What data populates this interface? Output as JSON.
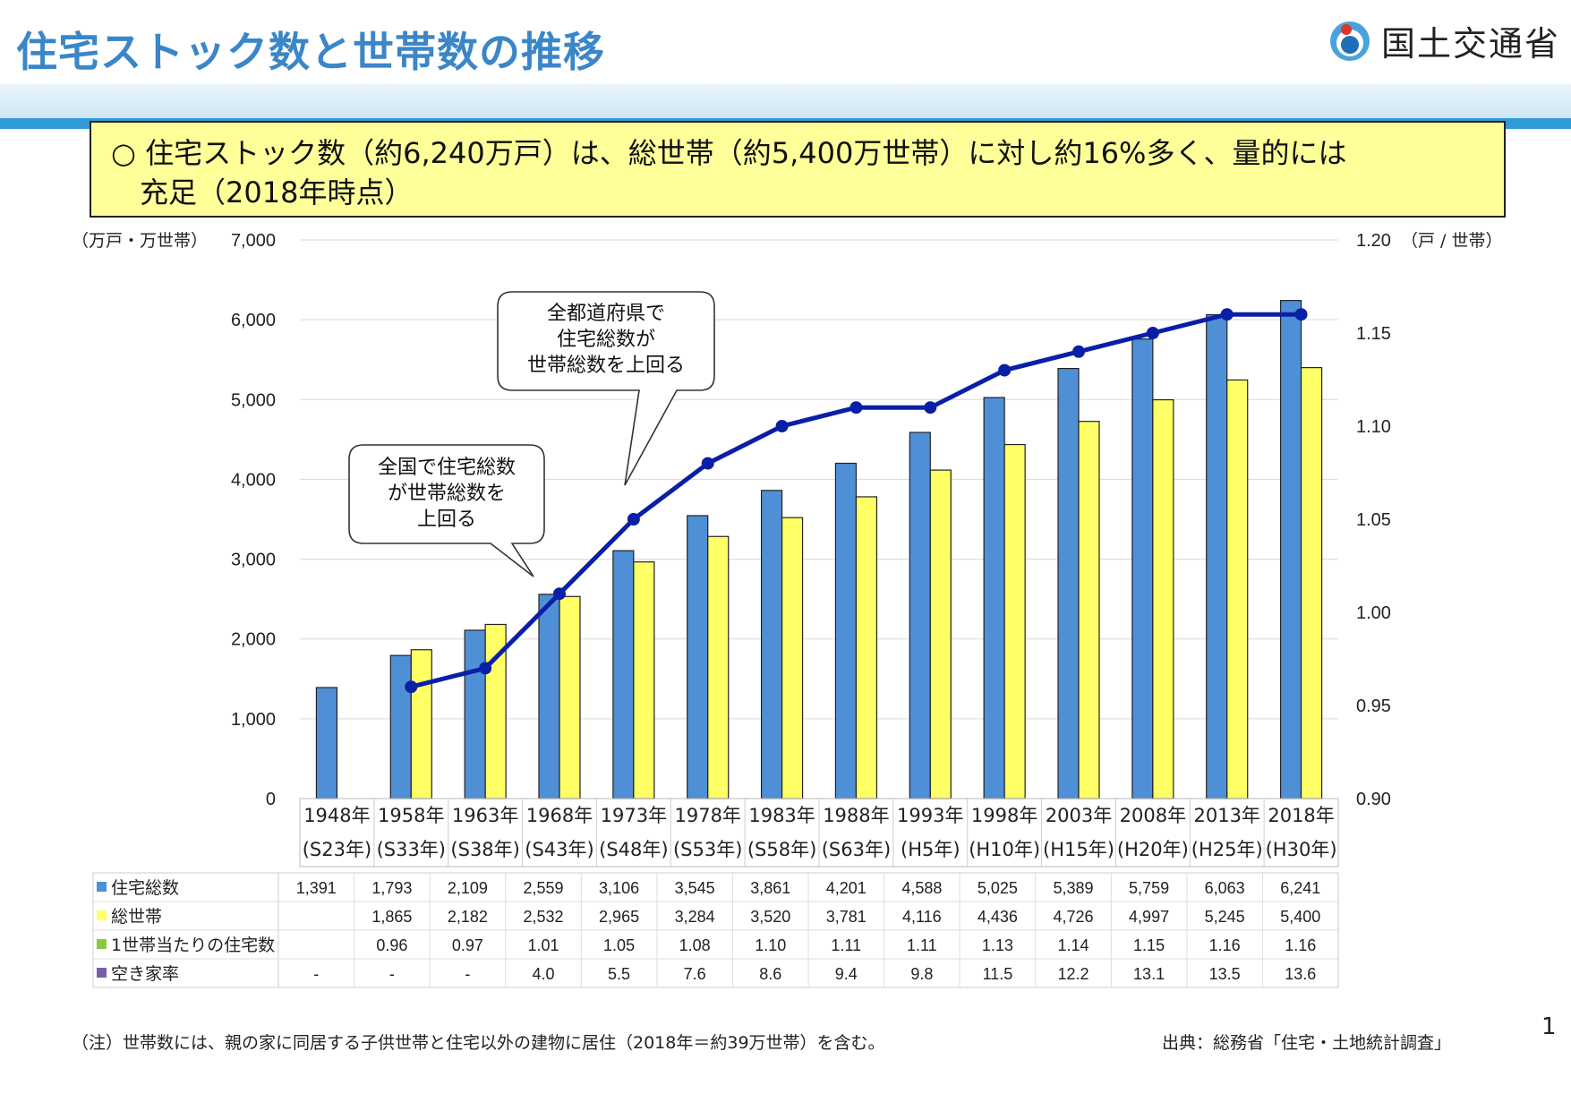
{
  "title": "住宅ストック数と世帯数の推移",
  "logo": {
    "name": "国土交通省",
    "icon": "mlit-logo-icon"
  },
  "summary": "○ 住宅ストック数（約6,240万戸）は、総世帯（約5,400万世帯）に対し約16%多く、量的には\n　充足（2018年時点）",
  "left_unit": "（万戸・万世帯）",
  "right_unit": "（戸 / 世帯）",
  "callouts": {
    "prefecture": "全都道府県で\n住宅総数が\n世帯総数を上回る",
    "national": "全国で住宅総数\nが世帯総数を\n上回る"
  },
  "note": "（注）世帯数には、親の家に同居する子供世帯と住宅以外の建物に居住（2018年＝約39万世帯）を含む。",
  "source": "出典：総務省「住宅・土地統計調査」",
  "page_number": "1",
  "colors": {
    "bar_houses": "#4f8fd6",
    "bar_households": "#ffff66",
    "line": "#0a1fa8",
    "title": "#3a86c8"
  },
  "chart_data": {
    "type": "bar",
    "categories": [
      "1948年",
      "1958年",
      "1963年",
      "1968年",
      "1973年",
      "1978年",
      "1983年",
      "1988年",
      "1993年",
      "1998年",
      "2003年",
      "2008年",
      "2013年",
      "2018年"
    ],
    "era_labels": [
      "(S23年)",
      "(S33年)",
      "(S38年)",
      "(S43年)",
      "(S48年)",
      "(S53年)",
      "(S58年)",
      "(S63年)",
      "(H5年)",
      "(H10年)",
      "(H15年)",
      "(H20年)",
      "(H25年)",
      "(H30年)"
    ],
    "series": [
      {
        "name": "住宅総数",
        "type": "bar",
        "axis": "left",
        "values": [
          1391,
          1793,
          2109,
          2559,
          3106,
          3545,
          3861,
          4201,
          4588,
          5025,
          5389,
          5759,
          6063,
          6241
        ]
      },
      {
        "name": "総世帯",
        "type": "bar",
        "axis": "left",
        "values": [
          null,
          1865,
          2182,
          2532,
          2965,
          3284,
          3520,
          3781,
          4116,
          4436,
          4726,
          4997,
          5245,
          5400
        ]
      },
      {
        "name": "1世帯当たりの住宅数",
        "type": "line",
        "axis": "right",
        "values": [
          null,
          0.96,
          0.97,
          1.01,
          1.05,
          1.08,
          1.1,
          1.11,
          1.11,
          1.13,
          1.14,
          1.15,
          1.16,
          1.16
        ]
      },
      {
        "name": "空き家率",
        "type": "table",
        "values": [
          "-",
          "-",
          "-",
          "4.0",
          "5.5",
          "7.6",
          "8.6",
          "9.4",
          "9.8",
          "11.5",
          "12.2",
          "13.1",
          "13.5",
          "13.6"
        ]
      }
    ],
    "table_display": [
      [
        "1,391",
        "1,793",
        "2,109",
        "2,559",
        "3,106",
        "3,545",
        "3,861",
        "4,201",
        "4,588",
        "5,025",
        "5,389",
        "5,759",
        "6,063",
        "6,241"
      ],
      [
        "",
        "1,865",
        "2,182",
        "2,532",
        "2,965",
        "3,284",
        "3,520",
        "3,781",
        "4,116",
        "4,436",
        "4,726",
        "4,997",
        "5,245",
        "5,400"
      ],
      [
        "",
        "0.96",
        "0.97",
        "1.01",
        "1.05",
        "1.08",
        "1.10",
        "1.11",
        "1.11",
        "1.13",
        "1.14",
        "1.15",
        "1.16",
        "1.16"
      ],
      [
        "-",
        "-",
        "-",
        "4.0",
        "5.5",
        "7.6",
        "8.6",
        "9.4",
        "9.8",
        "11.5",
        "12.2",
        "13.1",
        "13.5",
        "13.6"
      ]
    ],
    "legend_colors": [
      "#4f8fd6",
      "#ffff66",
      "#8dc63f",
      "#7b5ea7"
    ],
    "y_left": {
      "min": 0,
      "max": 7000,
      "ticks": [
        "0",
        "1,000",
        "2,000",
        "3,000",
        "4,000",
        "5,000",
        "6,000",
        "7,000"
      ]
    },
    "y_right": {
      "min": 0.9,
      "max": 1.2,
      "ticks": [
        "0.90",
        "0.95",
        "1.00",
        "1.05",
        "1.10",
        "1.15",
        "1.20"
      ]
    }
  }
}
